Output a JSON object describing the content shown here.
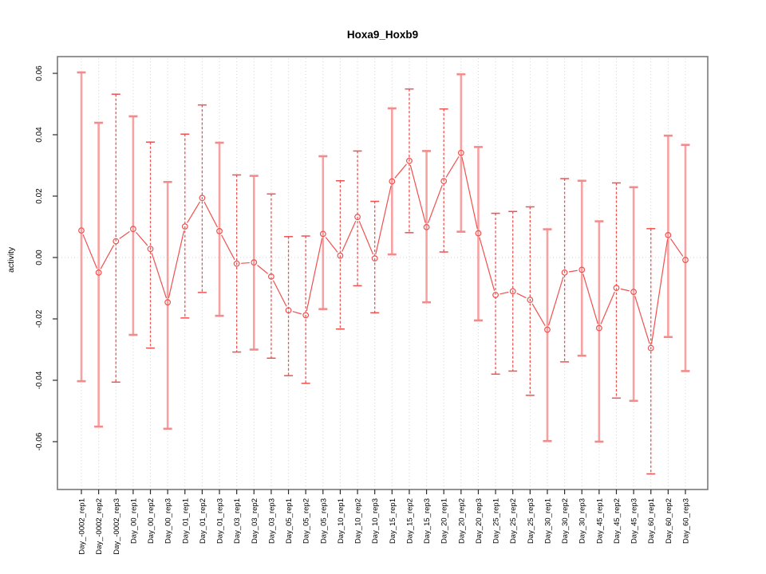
{
  "window": {
    "background": "#ffffff"
  },
  "colors": {
    "series_red": "#EF5150",
    "solid_bar_pink": "#F7A2A2",
    "solid_bar_cap_pink": "#F28C8C",
    "grid_gray": "#d4d4d4",
    "box_gray": "#7a7a7a",
    "tick_black": "#2b2b2b"
  },
  "chart_data": {
    "type": "line",
    "title": "Hoxa9_Hoxb9",
    "xlabel": "",
    "ylabel": "activity",
    "ylim": [
      -0.072,
      0.063
    ],
    "y_ticks": [
      0.06,
      0.04,
      0.02,
      0.0,
      -0.02,
      -0.04,
      -0.06
    ],
    "y_tick_labels": [
      "0.06",
      "0.04",
      "0.02",
      "0.00",
      "-0.02",
      "-0.04",
      "-0.06"
    ],
    "grid": {
      "vertical_dotted_per_category": true,
      "horizontal_dotted_at_zero": true
    },
    "legend": "none",
    "marker": "open-circle",
    "line_type": "points-with-gapped-segments",
    "categories": [
      "Day_-0002_rep1",
      "Day_-0002_rep2",
      "Day_-0002_rep3",
      "Day_00_rep1",
      "Day_00_rep2",
      "Day_00_rep3",
      "Day_01_rep1",
      "Day_01_rep2",
      "Day_01_rep3",
      "Day_03_rep1",
      "Day_03_rep2",
      "Day_03_rep3",
      "Day_05_rep1",
      "Day_05_rep2",
      "Day_05_rep3",
      "Day_10_rep1",
      "Day_10_rep2",
      "Day_10_rep3",
      "Day_15_rep1",
      "Day_15_rep2",
      "Day_15_rep3",
      "Day_20_rep1",
      "Day_20_rep2",
      "Day_20_rep3",
      "Day_25_rep1",
      "Day_25_rep2",
      "Day_25_rep3",
      "Day_30_rep1",
      "Day_30_rep2",
      "Day_30_rep3",
      "Day_45_rep1",
      "Day_45_rep2",
      "Day_45_rep3",
      "Day_60_rep1",
      "Day_60_rep2",
      "Day_60_rep3"
    ],
    "series": [
      {
        "name": "activity",
        "values": [
          0.0088,
          -0.0049,
          0.0053,
          0.0093,
          0.0028,
          -0.0146,
          0.0101,
          0.0194,
          0.0086,
          -0.002,
          -0.0016,
          -0.0062,
          -0.0172,
          -0.0188,
          0.0077,
          0.0006,
          0.0132,
          -0.0003,
          0.0248,
          0.0315,
          0.0099,
          0.0249,
          0.0341,
          0.0079,
          -0.0122,
          -0.011,
          -0.0138,
          -0.0235,
          -0.0049,
          -0.004,
          -0.023,
          -0.0099,
          -0.0112,
          -0.0295,
          0.0073,
          -0.0008
        ],
        "error_low": [
          -0.0403,
          -0.0551,
          -0.0406,
          -0.0252,
          -0.0295,
          -0.0558,
          -0.0197,
          -0.0114,
          -0.019,
          -0.0308,
          -0.03,
          -0.0328,
          -0.0385,
          -0.041,
          -0.0168,
          -0.0233,
          -0.0092,
          -0.018,
          0.001,
          0.0081,
          -0.0146,
          0.0018,
          0.0084,
          -0.0205,
          -0.038,
          -0.037,
          -0.0449,
          -0.0598,
          -0.034,
          -0.032,
          -0.06,
          -0.0458,
          -0.0467,
          -0.0705,
          -0.0259,
          -0.037
        ],
        "error_high": [
          0.0603,
          0.0439,
          0.0532,
          0.046,
          0.0376,
          0.0246,
          0.0402,
          0.0497,
          0.0374,
          0.0269,
          0.0266,
          0.0207,
          0.0068,
          0.007,
          0.033,
          0.025,
          0.0347,
          0.0183,
          0.0486,
          0.0549,
          0.0347,
          0.0484,
          0.0597,
          0.036,
          0.0144,
          0.015,
          0.0165,
          0.0092,
          0.0257,
          0.025,
          0.0118,
          0.0243,
          0.0229,
          0.0094,
          0.0397,
          0.0367
        ],
        "bar_styles": [
          "solid",
          "solid",
          "dashed",
          "solid",
          "dashed",
          "solid",
          "dashed",
          "dashed",
          "solid",
          "dashed",
          "solid",
          "dashed",
          "dashed",
          "dashed",
          "solid",
          "dashed",
          "dashed",
          "dashed",
          "solid",
          "dashed",
          "solid",
          "dashed",
          "solid",
          "solid",
          "dashed",
          "dashed",
          "dashed",
          "solid",
          "dashed",
          "solid",
          "solid",
          "dashed",
          "solid",
          "dashed",
          "solid",
          "solid"
        ]
      }
    ]
  }
}
